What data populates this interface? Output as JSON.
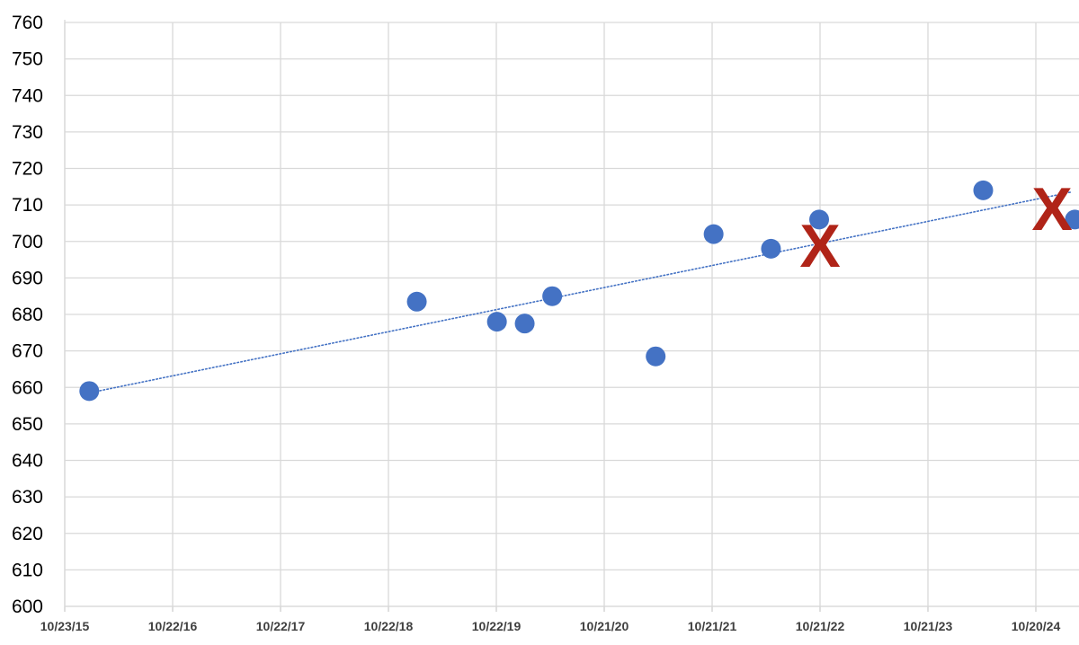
{
  "chart_data": {
    "type": "scatter",
    "x_axis": {
      "type": "date",
      "range": [
        "2015-10-23",
        "2025-03-15"
      ],
      "tick_dates": [
        "2015-10-23",
        "2016-10-22",
        "2017-10-22",
        "2018-10-22",
        "2019-10-22",
        "2020-10-21",
        "2021-10-21",
        "2022-10-21",
        "2023-10-21",
        "2024-10-20"
      ],
      "tick_labels": [
        "10/23/15",
        "10/22/16",
        "10/22/17",
        "10/22/18",
        "10/22/19",
        "10/21/20",
        "10/21/21",
        "10/21/22",
        "10/21/23",
        "10/20/24"
      ]
    },
    "y_axis": {
      "range": [
        600,
        760
      ],
      "ticks": [
        600,
        610,
        620,
        630,
        640,
        650,
        660,
        670,
        680,
        690,
        700,
        710,
        720,
        730,
        740,
        750,
        760
      ]
    },
    "grid": true,
    "series": [
      {
        "color": "#4472C4",
        "marker": "circle",
        "points": [
          {
            "x": "2016-01-14",
            "y": 659
          },
          {
            "x": "2019-01-26",
            "y": 683.5
          },
          {
            "x": "2019-10-24",
            "y": 678
          },
          {
            "x": "2020-01-26",
            "y": 677.5
          },
          {
            "x": "2020-04-28",
            "y": 685
          },
          {
            "x": "2021-04-13",
            "y": 668.5
          },
          {
            "x": "2021-10-26",
            "y": 702
          },
          {
            "x": "2022-05-08",
            "y": 698
          },
          {
            "x": "2022-10-18",
            "y": 706
          },
          {
            "x": "2024-04-25",
            "y": 714
          },
          {
            "x": "2025-03-01",
            "y": 706
          }
        ]
      }
    ],
    "trendline": {
      "type": "linear",
      "style": "dotted",
      "color": "#4472C4",
      "start": {
        "x": "2016-01-14",
        "y": 658.5
      },
      "end": {
        "x": "2025-02-15",
        "y": 713.5
      }
    },
    "annotations": [
      {
        "text": "X",
        "color": "#B02418",
        "x": "2022-10-21",
        "y": 699
      },
      {
        "text": "X",
        "color": "#B02418",
        "x": "2024-12-14",
        "y": 709
      }
    ]
  }
}
